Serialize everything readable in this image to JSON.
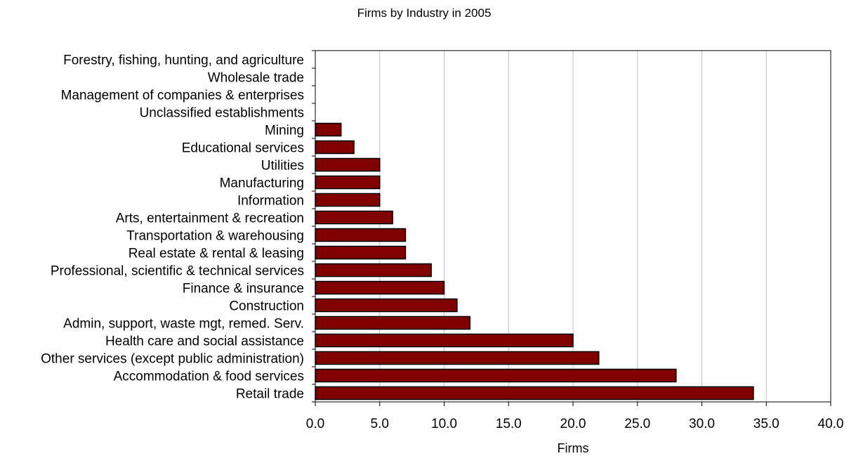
{
  "chart_data": {
    "type": "bar",
    "orientation": "horizontal",
    "title": "Firms by Industry in 2005",
    "xlabel": "Firms",
    "ylabel": "",
    "xlim": [
      0,
      40
    ],
    "xticks": [
      "0.0",
      "5.0",
      "10.0",
      "15.0",
      "20.0",
      "25.0",
      "30.0",
      "35.0",
      "40.0"
    ],
    "grid": "vertical",
    "legend": "none",
    "bar_color": "#800000",
    "categories": [
      "Forestry, fishing, hunting, and agriculture",
      "Wholesale trade",
      "Management of companies & enterprises",
      "Unclassified establishments",
      "Mining",
      "Educational services",
      "Utilities",
      "Manufacturing",
      "Information",
      "Arts, entertainment & recreation",
      "Transportation & warehousing",
      "Real estate & rental & leasing",
      "Professional, scientific & technical services",
      "Finance & insurance",
      "Construction",
      "Admin, support, waste mgt, remed. Serv.",
      "Health care and social assistance",
      "Other services (except public administration)",
      "Accommodation & food services",
      "Retail trade"
    ],
    "values": [
      0,
      0,
      0,
      0,
      2,
      3,
      5,
      5,
      5,
      6,
      7,
      7,
      9,
      10,
      11,
      12,
      20,
      22,
      28,
      34
    ]
  }
}
